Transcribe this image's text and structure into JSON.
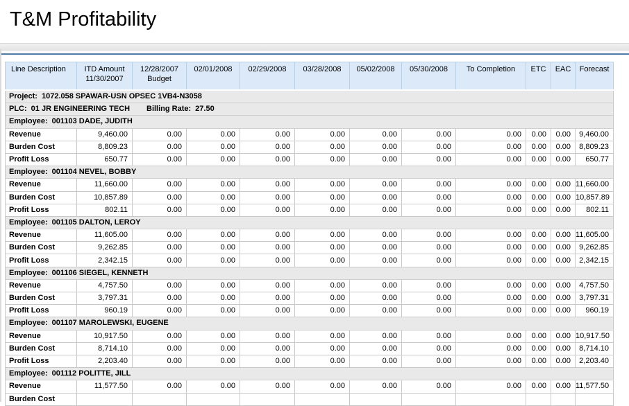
{
  "title": "T&M Profitability",
  "colors": {
    "accent_rule": "#4d7ba6",
    "header_bg": "#dbe9f8",
    "group_row_bg": "#e9e9e9"
  },
  "report": {
    "columns": [
      "Line Description",
      "ITD Amount\n11/30/2007",
      "12/28/2007\nBudget",
      "02/01/2008",
      "02/29/2008",
      "03/28/2008",
      "05/02/2008",
      "05/30/2008",
      "To Completion",
      "ETC",
      "EAC",
      "Forecast"
    ],
    "project": {
      "label": "Project:",
      "value": "1072.058 SPAWAR-USN OPSEC 1VB4-N3058"
    },
    "plc": {
      "label": "PLC:",
      "value": "01 JR ENGINEERING TECH",
      "billing_rate_label": "Billing Rate:",
      "billing_rate_value": "27.50"
    },
    "employee_label": "Employee:",
    "employees": [
      {
        "name": "001103 DADE, JUDITH",
        "rows": [
          {
            "label": "Revenue",
            "values": [
              "9,460.00",
              "0.00",
              "0.00",
              "0.00",
              "0.00",
              "0.00",
              "0.00",
              "0.00",
              "0.00",
              "0.00",
              "9,460.00"
            ]
          },
          {
            "label": "Burden Cost",
            "values": [
              "8,809.23",
              "0.00",
              "0.00",
              "0.00",
              "0.00",
              "0.00",
              "0.00",
              "0.00",
              "0.00",
              "0.00",
              "8,809.23"
            ]
          },
          {
            "label": "Profit Loss",
            "values": [
              "650.77",
              "0.00",
              "0.00",
              "0.00",
              "0.00",
              "0.00",
              "0.00",
              "0.00",
              "0.00",
              "0.00",
              "650.77"
            ]
          }
        ]
      },
      {
        "name": "001104 NEVEL, BOBBY",
        "rows": [
          {
            "label": "Revenue",
            "values": [
              "11,660.00",
              "0.00",
              "0.00",
              "0.00",
              "0.00",
              "0.00",
              "0.00",
              "0.00",
              "0.00",
              "0.00",
              "11,660.00"
            ]
          },
          {
            "label": "Burden Cost",
            "values": [
              "10,857.89",
              "0.00",
              "0.00",
              "0.00",
              "0.00",
              "0.00",
              "0.00",
              "0.00",
              "0.00",
              "0.00",
              "10,857.89"
            ]
          },
          {
            "label": "Profit Loss",
            "values": [
              "802.11",
              "0.00",
              "0.00",
              "0.00",
              "0.00",
              "0.00",
              "0.00",
              "0.00",
              "0.00",
              "0.00",
              "802.11"
            ]
          }
        ]
      },
      {
        "name": "001105 DALTON, LEROY",
        "rows": [
          {
            "label": "Revenue",
            "values": [
              "11,605.00",
              "0.00",
              "0.00",
              "0.00",
              "0.00",
              "0.00",
              "0.00",
              "0.00",
              "0.00",
              "0.00",
              "11,605.00"
            ]
          },
          {
            "label": "Burden Cost",
            "values": [
              "9,262.85",
              "0.00",
              "0.00",
              "0.00",
              "0.00",
              "0.00",
              "0.00",
              "0.00",
              "0.00",
              "0.00",
              "9,262.85"
            ]
          },
          {
            "label": "Profit Loss",
            "values": [
              "2,342.15",
              "0.00",
              "0.00",
              "0.00",
              "0.00",
              "0.00",
              "0.00",
              "0.00",
              "0.00",
              "0.00",
              "2,342.15"
            ]
          }
        ]
      },
      {
        "name": "001106 SIEGEL, KENNETH",
        "rows": [
          {
            "label": "Revenue",
            "values": [
              "4,757.50",
              "0.00",
              "0.00",
              "0.00",
              "0.00",
              "0.00",
              "0.00",
              "0.00",
              "0.00",
              "0.00",
              "4,757.50"
            ]
          },
          {
            "label": "Burden Cost",
            "values": [
              "3,797.31",
              "0.00",
              "0.00",
              "0.00",
              "0.00",
              "0.00",
              "0.00",
              "0.00",
              "0.00",
              "0.00",
              "3,797.31"
            ]
          },
          {
            "label": "Profit Loss",
            "values": [
              "960.19",
              "0.00",
              "0.00",
              "0.00",
              "0.00",
              "0.00",
              "0.00",
              "0.00",
              "0.00",
              "0.00",
              "960.19"
            ]
          }
        ]
      },
      {
        "name": "001107 MAROLEWSKI, EUGENE",
        "rows": [
          {
            "label": "Revenue",
            "values": [
              "10,917.50",
              "0.00",
              "0.00",
              "0.00",
              "0.00",
              "0.00",
              "0.00",
              "0.00",
              "0.00",
              "0.00",
              "10,917.50"
            ]
          },
          {
            "label": "Burden Cost",
            "values": [
              "8,714.10",
              "0.00",
              "0.00",
              "0.00",
              "0.00",
              "0.00",
              "0.00",
              "0.00",
              "0.00",
              "0.00",
              "8,714.10"
            ]
          },
          {
            "label": "Profit Loss",
            "values": [
              "2,203.40",
              "0.00",
              "0.00",
              "0.00",
              "0.00",
              "0.00",
              "0.00",
              "0.00",
              "0.00",
              "0.00",
              "2,203.40"
            ]
          }
        ]
      },
      {
        "name": "001112 POLITTE, JILL",
        "rows": [
          {
            "label": "Revenue",
            "values": [
              "11,577.50",
              "0.00",
              "0.00",
              "0.00",
              "0.00",
              "0.00",
              "0.00",
              "0.00",
              "0.00",
              "0.00",
              "11,577.50"
            ]
          },
          {
            "label": "Burden Cost",
            "values": [
              "",
              "",
              "",
              "",
              "",
              "",
              "",
              "",
              "",
              "",
              ""
            ]
          }
        ]
      }
    ]
  }
}
